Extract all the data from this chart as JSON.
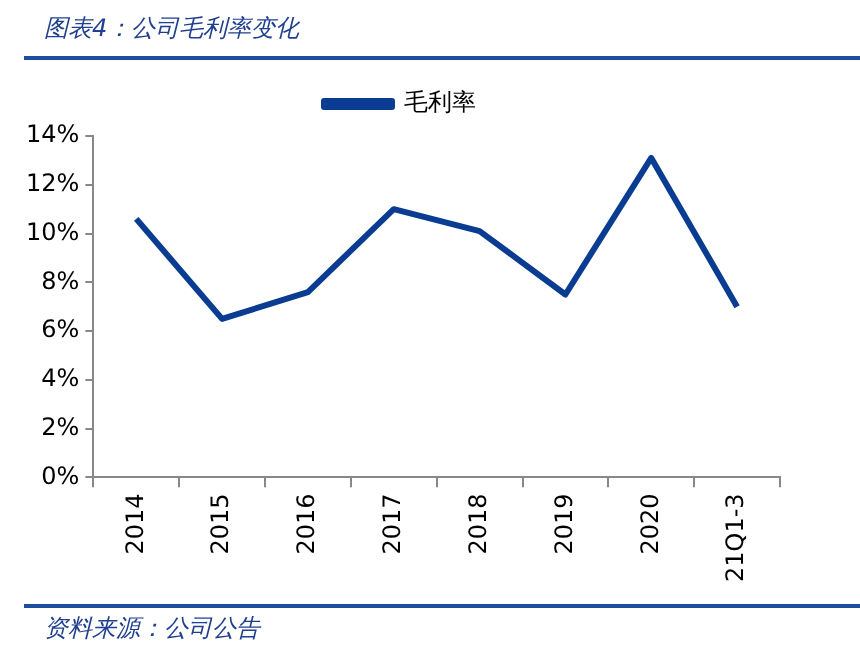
{
  "chart_data": {
    "type": "line",
    "title": "图表4：公司毛利率变化",
    "annotations": [
      "资料来源：公司公告"
    ],
    "categories": [
      "2014",
      "2015",
      "2016",
      "2017",
      "2018",
      "2019",
      "2020",
      "21Q1-3"
    ],
    "series": [
      {
        "name": "毛利率",
        "color": "#0a3d91",
        "values": [
          10.6,
          6.5,
          7.6,
          11.0,
          10.1,
          7.5,
          13.1,
          7.0
        ]
      }
    ],
    "ylim": [
      0,
      14
    ],
    "yticks": [
      {
        "value": 0,
        "label": "0%"
      },
      {
        "value": 2,
        "label": "2%"
      },
      {
        "value": 4,
        "label": "4%"
      },
      {
        "value": 6,
        "label": "6%"
      },
      {
        "value": 8,
        "label": "8%"
      },
      {
        "value": 10,
        "label": "10%"
      },
      {
        "value": 12,
        "label": "12%"
      },
      {
        "value": 14,
        "label": "14%"
      }
    ],
    "grid": false,
    "legend": "top",
    "marker": "none",
    "line_style": "solid"
  }
}
